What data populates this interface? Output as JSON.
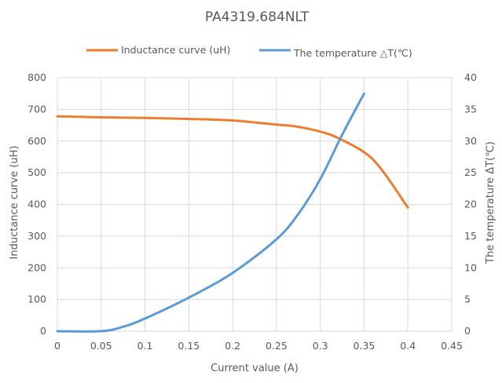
{
  "chart_data": {
    "type": "line",
    "title": "PA4319.684NLT",
    "xlabel": "Current value (A)",
    "ylabel": "Inductance curve (uH)",
    "y2label": "The temperature ΔT(℃)",
    "xlim": [
      0,
      0.45
    ],
    "ylim": [
      0,
      800
    ],
    "y2lim": [
      0,
      40
    ],
    "x_ticks": [
      "0",
      "0.05",
      "0.1",
      "0.15",
      "0.2",
      "0.25",
      "0.3",
      "0.35",
      "0.4",
      "0.45"
    ],
    "y_ticks": [
      "0",
      "100",
      "200",
      "300",
      "400",
      "500",
      "600",
      "700",
      "800"
    ],
    "y2_ticks": [
      "0",
      "5",
      "10",
      "15",
      "20",
      "25",
      "30",
      "35",
      "40"
    ],
    "grid": true,
    "legend_position": "top",
    "series": [
      {
        "name": "Inductance curve (uH)",
        "axis": "left",
        "color": "#ED7D31",
        "x": [
          0,
          0.05,
          0.1,
          0.15,
          0.2,
          0.25,
          0.27,
          0.3,
          0.32,
          0.35,
          0.37,
          0.4
        ],
        "y": [
          678,
          675,
          673,
          670,
          665,
          652,
          647,
          630,
          610,
          565,
          510,
          390
        ]
      },
      {
        "name": "The temperature △T(℃)",
        "axis": "right",
        "color": "#5B9BD5",
        "x": [
          0,
          0.05,
          0.075,
          0.1,
          0.15,
          0.2,
          0.25,
          0.275,
          0.3,
          0.325,
          0.35
        ],
        "y": [
          0,
          0,
          0.7,
          2,
          5.3,
          9.2,
          14.5,
          18.5,
          24,
          31,
          37.5
        ]
      }
    ]
  }
}
